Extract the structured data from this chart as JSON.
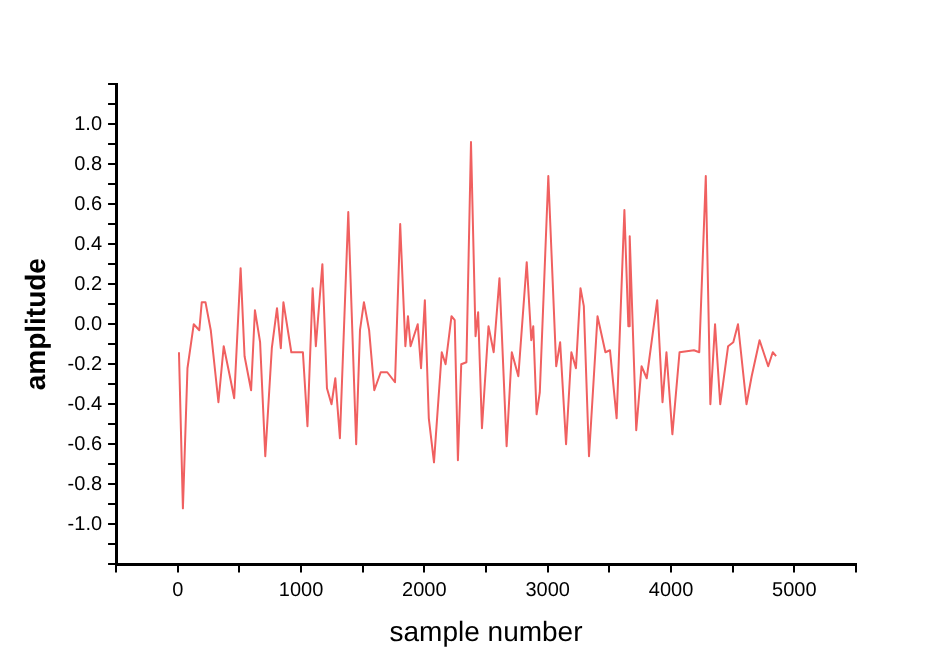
{
  "chart_data": {
    "type": "line",
    "xlabel": "sample number",
    "ylabel": "amplitude",
    "xlim": [
      -500,
      5500
    ],
    "xticks": [
      {
        "value": -500,
        "label": null
      },
      0,
      {
        "value": 500,
        "label": null
      },
      1000,
      {
        "value": 1500,
        "label": null
      },
      2000,
      {
        "value": 2500,
        "label": null
      },
      3000,
      {
        "value": 3500,
        "label": null
      },
      4000,
      {
        "value": 4500,
        "label": null
      },
      5000,
      {
        "value": 5500,
        "label": null
      }
    ],
    "ylim": [
      -1.2,
      1.2
    ],
    "yticks": [
      {
        "value": -1.2,
        "label": null
      },
      {
        "value": -1.1,
        "label": null
      },
      {
        "value": -1.0,
        "label": "-1.0"
      },
      {
        "value": -0.9,
        "label": null
      },
      {
        "value": -0.8,
        "label": "-0.8"
      },
      {
        "value": -0.7,
        "label": null
      },
      {
        "value": -0.6,
        "label": "-0.6"
      },
      {
        "value": -0.5,
        "label": null
      },
      {
        "value": -0.4,
        "label": "-0.4"
      },
      {
        "value": -0.3,
        "label": null
      },
      {
        "value": -0.2,
        "label": "-0.2"
      },
      {
        "value": -0.1,
        "label": null
      },
      {
        "value": 0,
        "label": "0.0"
      },
      {
        "value": 0.1,
        "label": null
      },
      {
        "value": 0.2,
        "label": "0.2"
      },
      {
        "value": 0.3,
        "label": null
      },
      {
        "value": 0.4,
        "label": "0.4"
      },
      {
        "value": 0.5,
        "label": null
      },
      {
        "value": 0.6,
        "label": "0.6"
      },
      {
        "value": 0.7,
        "label": null
      },
      {
        "value": 0.8,
        "label": "0.8"
      },
      {
        "value": 0.9,
        "label": null
      },
      {
        "value": 1.0,
        "label": "1.0"
      },
      {
        "value": 1.1,
        "label": null
      },
      {
        "value": 1.2,
        "label": null
      }
    ],
    "grid": false,
    "legend": false,
    "marker": "none",
    "line_style": "solid",
    "series": [
      {
        "color": "#f06060",
        "x": [
          10,
          42,
          79,
          130,
          175,
          195,
          225,
          268,
          330,
          373,
          426,
          458,
          510,
          542,
          595,
          626,
          668,
          710,
          763,
          805,
          836,
          857,
          921,
          1015,
          1052,
          1094,
          1120,
          1173,
          1210,
          1247,
          1278,
          1315,
          1383,
          1447,
          1478,
          1510,
          1552,
          1594,
          1646,
          1699,
          1762,
          1804,
          1846,
          1867,
          1888,
          1946,
          1973,
          2004,
          2036,
          2078,
          2141,
          2172,
          2220,
          2246,
          2272,
          2299,
          2341,
          2378,
          2415,
          2436,
          2467,
          2520,
          2562,
          2609,
          2667,
          2709,
          2762,
          2830,
          2867,
          2883,
          2910,
          2936,
          3005,
          3069,
          3101,
          3149,
          3192,
          3229,
          3266,
          3293,
          3335,
          3404,
          3468,
          3505,
          3559,
          3622,
          3654,
          3665,
          3718,
          3761,
          3803,
          3888,
          3931,
          3963,
          4011,
          4069,
          4186,
          4229,
          4282,
          4319,
          4357,
          4399,
          4463,
          4505,
          4543,
          4612,
          4654,
          4718,
          4788,
          4825,
          4852
        ],
        "values": [
          -0.14,
          -0.92,
          -0.22,
          0.0,
          -0.03,
          0.11,
          0.11,
          -0.03,
          -0.39,
          -0.11,
          -0.27,
          -0.37,
          0.28,
          -0.16,
          -0.33,
          0.07,
          -0.09,
          -0.66,
          -0.12,
          0.08,
          -0.12,
          0.11,
          -0.14,
          -0.14,
          -0.51,
          0.18,
          -0.11,
          0.3,
          -0.32,
          -0.4,
          -0.27,
          -0.57,
          0.56,
          -0.6,
          -0.03,
          0.11,
          -0.03,
          -0.33,
          -0.24,
          -0.24,
          -0.29,
          0.5,
          -0.11,
          0.04,
          -0.11,
          0.0,
          -0.22,
          0.12,
          -0.47,
          -0.69,
          -0.14,
          -0.2,
          0.04,
          0.02,
          -0.68,
          -0.2,
          -0.19,
          0.91,
          -0.06,
          0.06,
          -0.52,
          -0.01,
          -0.14,
          0.23,
          -0.61,
          -0.14,
          -0.26,
          0.31,
          -0.08,
          -0.01,
          -0.45,
          -0.34,
          0.74,
          -0.21,
          -0.09,
          -0.6,
          -0.14,
          -0.22,
          0.18,
          0.09,
          -0.66,
          0.04,
          -0.14,
          -0.13,
          -0.47,
          0.57,
          -0.01,
          0.44,
          -0.53,
          -0.21,
          -0.27,
          0.12,
          -0.39,
          -0.14,
          -0.55,
          -0.14,
          -0.13,
          -0.14,
          0.74,
          -0.4,
          0.0,
          -0.4,
          -0.11,
          -0.09,
          0.0,
          -0.4,
          -0.26,
          -0.08,
          -0.21,
          -0.14,
          -0.16
        ]
      }
    ]
  }
}
